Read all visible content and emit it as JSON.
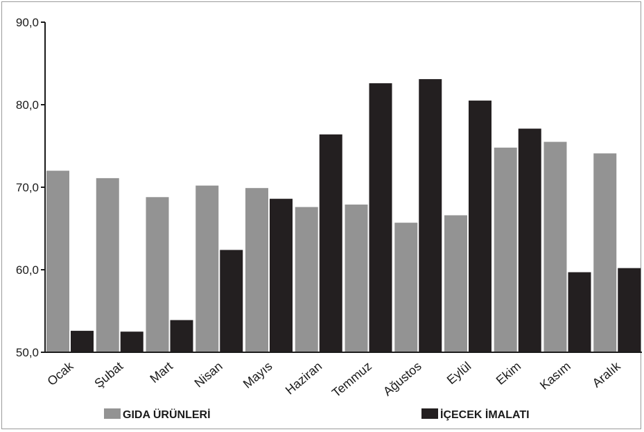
{
  "chart_data": {
    "type": "bar",
    "title": "",
    "xlabel": "",
    "ylabel": "",
    "ylim": [
      50,
      90
    ],
    "yticks": [
      "90,0",
      "80,0",
      "70,0",
      "60,0",
      "50,0"
    ],
    "ytick_values": [
      90,
      80,
      70,
      60,
      50
    ],
    "grid": false,
    "legend_position": "bottom",
    "categories": [
      "Ocak",
      "Şubat",
      "Mart",
      "Nisan",
      "Mayıs",
      "Haziran",
      "Temmuz",
      "Ağustos",
      "Eylül",
      "Ekim",
      "Kasım",
      "Aralık"
    ],
    "series": [
      {
        "name": "GIDA ÜRÜNLERİ",
        "color": "#939393",
        "values": [
          72.0,
          71.1,
          68.8,
          70.2,
          69.9,
          67.6,
          67.9,
          65.7,
          66.6,
          74.8,
          75.5,
          74.1
        ]
      },
      {
        "name": "İÇECEK İMALATI",
        "color": "#231f20",
        "values": [
          52.6,
          52.5,
          53.9,
          62.4,
          68.6,
          76.4,
          82.6,
          83.1,
          80.5,
          77.1,
          59.7,
          60.2
        ]
      }
    ]
  }
}
